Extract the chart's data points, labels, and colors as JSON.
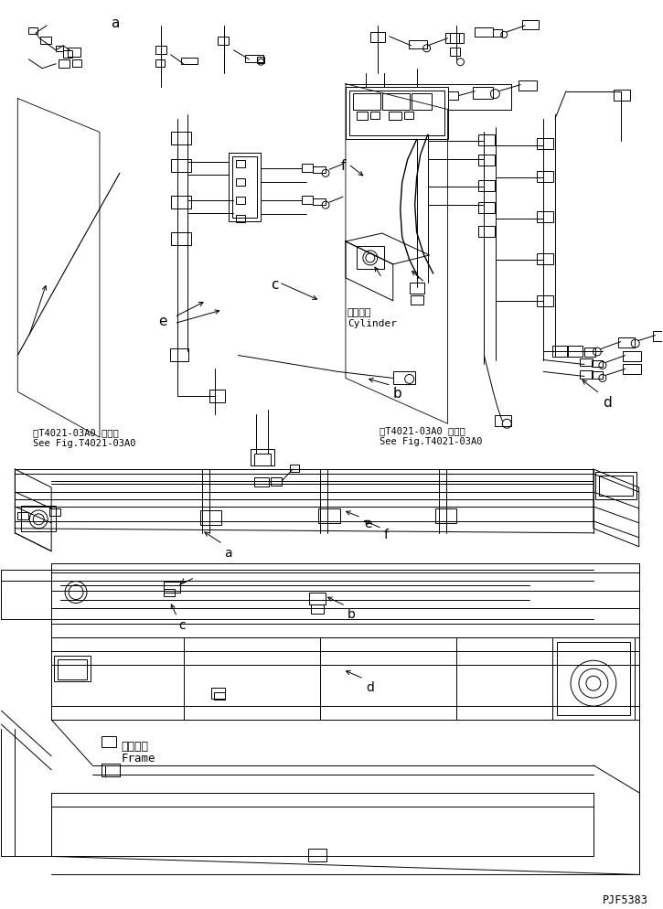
{
  "bg_color": "#ffffff",
  "line_color": "#000000",
  "fig_width": 7.25,
  "fig_height": 9.94,
  "dpi": 100,
  "watermark": "PJF5383",
  "ref_left_line1": "第T4021-03A0 図参照",
  "ref_left_line2": "See Fig.T4021-03A0",
  "ref_right_line1": "第T4021-03A0 図参照",
  "ref_right_line2": "See Fig.T4021-03A0",
  "cylinder_jp": "シリンダ",
  "cylinder_en": "Cylinder",
  "frame_jp": "フレーム",
  "frame_en": "Frame"
}
